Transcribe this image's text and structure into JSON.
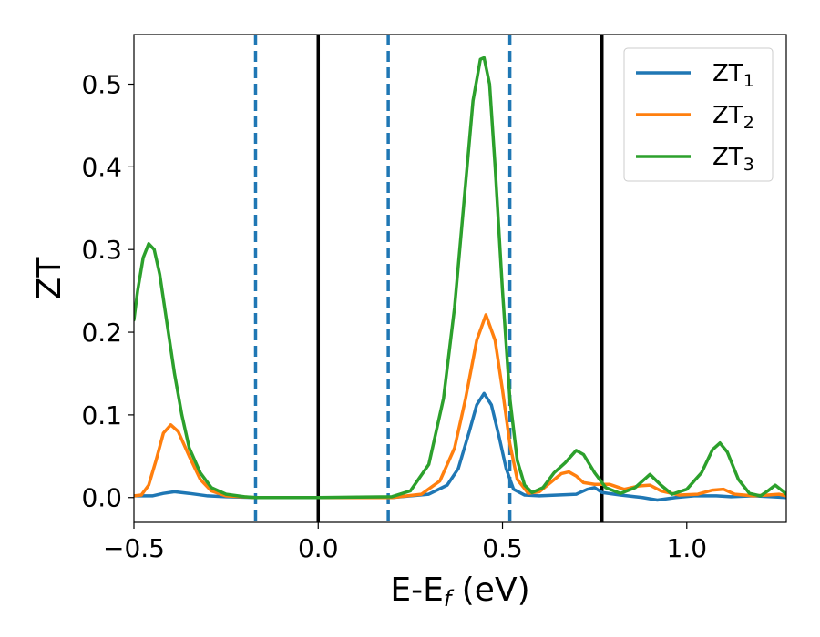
{
  "chart_data": {
    "type": "line",
    "xlabel": "E-E",
    "xlabel_sub": "f",
    "xlabel_unit": " (eV)",
    "ylabel": "ZT",
    "xlim": [
      -0.5,
      1.27
    ],
    "ylim": [
      -0.03,
      0.56
    ],
    "xticks": [
      -0.5,
      0.0,
      0.5,
      1.0
    ],
    "xtick_labels": [
      "−0.5",
      "0.0",
      "0.5",
      "1.0"
    ],
    "yticks": [
      0.0,
      0.1,
      0.2,
      0.3,
      0.4,
      0.5
    ],
    "ytick_labels": [
      "0.0",
      "0.1",
      "0.2",
      "0.3",
      "0.4",
      "0.5"
    ],
    "grid": false,
    "legend_position": "top-right",
    "vlines": [
      {
        "x": -0.17,
        "style": "dashed",
        "color": "#1f77b4"
      },
      {
        "x": 0.0,
        "style": "solid",
        "color": "#000000"
      },
      {
        "x": 0.19,
        "style": "dashed",
        "color": "#1f77b4"
      },
      {
        "x": 0.52,
        "style": "dashed",
        "color": "#1f77b4"
      },
      {
        "x": 0.77,
        "style": "solid",
        "color": "#000000"
      }
    ],
    "series": [
      {
        "name": "ZT",
        "sub": "1",
        "color": "#1f77b4",
        "points": [
          [
            -0.5,
            0.002
          ],
          [
            -0.45,
            0.002
          ],
          [
            -0.42,
            0.005
          ],
          [
            -0.39,
            0.007
          ],
          [
            -0.35,
            0.005
          ],
          [
            -0.3,
            0.002
          ],
          [
            -0.25,
            0.001
          ],
          [
            -0.17,
            0.0
          ],
          [
            0.0,
            0.0
          ],
          [
            0.2,
            0.0
          ],
          [
            0.3,
            0.004
          ],
          [
            0.35,
            0.015
          ],
          [
            0.38,
            0.035
          ],
          [
            0.41,
            0.08
          ],
          [
            0.43,
            0.112
          ],
          [
            0.45,
            0.126
          ],
          [
            0.47,
            0.112
          ],
          [
            0.49,
            0.075
          ],
          [
            0.51,
            0.035
          ],
          [
            0.53,
            0.01
          ],
          [
            0.56,
            0.003
          ],
          [
            0.6,
            0.002
          ],
          [
            0.65,
            0.003
          ],
          [
            0.7,
            0.004
          ],
          [
            0.73,
            0.01
          ],
          [
            0.75,
            0.012
          ],
          [
            0.77,
            0.006
          ],
          [
            0.82,
            0.003
          ],
          [
            0.88,
            0.0
          ],
          [
            0.92,
            -0.003
          ],
          [
            0.97,
            0.0
          ],
          [
            1.02,
            0.002
          ],
          [
            1.08,
            0.002
          ],
          [
            1.12,
            0.001
          ],
          [
            1.18,
            0.002
          ],
          [
            1.23,
            0.001
          ],
          [
            1.27,
            0.0
          ]
        ]
      },
      {
        "name": "ZT",
        "sub": "2",
        "color": "#ff7f0e",
        "points": [
          [
            -0.5,
            0.002
          ],
          [
            -0.48,
            0.003
          ],
          [
            -0.46,
            0.015
          ],
          [
            -0.44,
            0.045
          ],
          [
            -0.42,
            0.078
          ],
          [
            -0.4,
            0.088
          ],
          [
            -0.38,
            0.08
          ],
          [
            -0.35,
            0.05
          ],
          [
            -0.32,
            0.022
          ],
          [
            -0.29,
            0.008
          ],
          [
            -0.25,
            0.002
          ],
          [
            -0.17,
            0.0
          ],
          [
            0.0,
            0.0
          ],
          [
            0.2,
            0.0
          ],
          [
            0.28,
            0.004
          ],
          [
            0.33,
            0.02
          ],
          [
            0.37,
            0.06
          ],
          [
            0.4,
            0.12
          ],
          [
            0.43,
            0.19
          ],
          [
            0.455,
            0.221
          ],
          [
            0.48,
            0.19
          ],
          [
            0.5,
            0.13
          ],
          [
            0.52,
            0.065
          ],
          [
            0.54,
            0.022
          ],
          [
            0.57,
            0.005
          ],
          [
            0.6,
            0.007
          ],
          [
            0.63,
            0.018
          ],
          [
            0.66,
            0.029
          ],
          [
            0.68,
            0.031
          ],
          [
            0.7,
            0.026
          ],
          [
            0.72,
            0.018
          ],
          [
            0.75,
            0.016
          ],
          [
            0.79,
            0.016
          ],
          [
            0.83,
            0.01
          ],
          [
            0.87,
            0.014
          ],
          [
            0.9,
            0.015
          ],
          [
            0.93,
            0.008
          ],
          [
            0.98,
            0.003
          ],
          [
            1.03,
            0.004
          ],
          [
            1.07,
            0.009
          ],
          [
            1.1,
            0.01
          ],
          [
            1.13,
            0.004
          ],
          [
            1.18,
            0.002
          ],
          [
            1.22,
            0.003
          ],
          [
            1.25,
            0.004
          ],
          [
            1.27,
            0.002
          ]
        ]
      },
      {
        "name": "ZT",
        "sub": "3",
        "color": "#2ca02c",
        "points": [
          [
            -0.5,
            0.215
          ],
          [
            -0.49,
            0.25
          ],
          [
            -0.475,
            0.29
          ],
          [
            -0.46,
            0.307
          ],
          [
            -0.445,
            0.3
          ],
          [
            -0.43,
            0.27
          ],
          [
            -0.41,
            0.21
          ],
          [
            -0.39,
            0.15
          ],
          [
            -0.37,
            0.1
          ],
          [
            -0.35,
            0.06
          ],
          [
            -0.32,
            0.03
          ],
          [
            -0.29,
            0.012
          ],
          [
            -0.25,
            0.004
          ],
          [
            -0.2,
            0.001
          ],
          [
            -0.17,
            0.0
          ],
          [
            0.0,
            0.0
          ],
          [
            0.2,
            0.001
          ],
          [
            0.25,
            0.008
          ],
          [
            0.3,
            0.04
          ],
          [
            0.34,
            0.12
          ],
          [
            0.37,
            0.23
          ],
          [
            0.4,
            0.38
          ],
          [
            0.42,
            0.48
          ],
          [
            0.44,
            0.53
          ],
          [
            0.45,
            0.532
          ],
          [
            0.465,
            0.5
          ],
          [
            0.48,
            0.4
          ],
          [
            0.5,
            0.25
          ],
          [
            0.52,
            0.12
          ],
          [
            0.54,
            0.045
          ],
          [
            0.56,
            0.015
          ],
          [
            0.58,
            0.006
          ],
          [
            0.61,
            0.012
          ],
          [
            0.64,
            0.03
          ],
          [
            0.67,
            0.042
          ],
          [
            0.7,
            0.057
          ],
          [
            0.72,
            0.052
          ],
          [
            0.75,
            0.03
          ],
          [
            0.78,
            0.012
          ],
          [
            0.82,
            0.005
          ],
          [
            0.86,
            0.012
          ],
          [
            0.9,
            0.028
          ],
          [
            0.93,
            0.015
          ],
          [
            0.96,
            0.004
          ],
          [
            1.0,
            0.01
          ],
          [
            1.04,
            0.03
          ],
          [
            1.07,
            0.058
          ],
          [
            1.09,
            0.066
          ],
          [
            1.11,
            0.055
          ],
          [
            1.14,
            0.022
          ],
          [
            1.17,
            0.005
          ],
          [
            1.2,
            0.002
          ],
          [
            1.22,
            0.008
          ],
          [
            1.24,
            0.015
          ],
          [
            1.26,
            0.008
          ],
          [
            1.27,
            0.004
          ]
        ]
      }
    ]
  }
}
